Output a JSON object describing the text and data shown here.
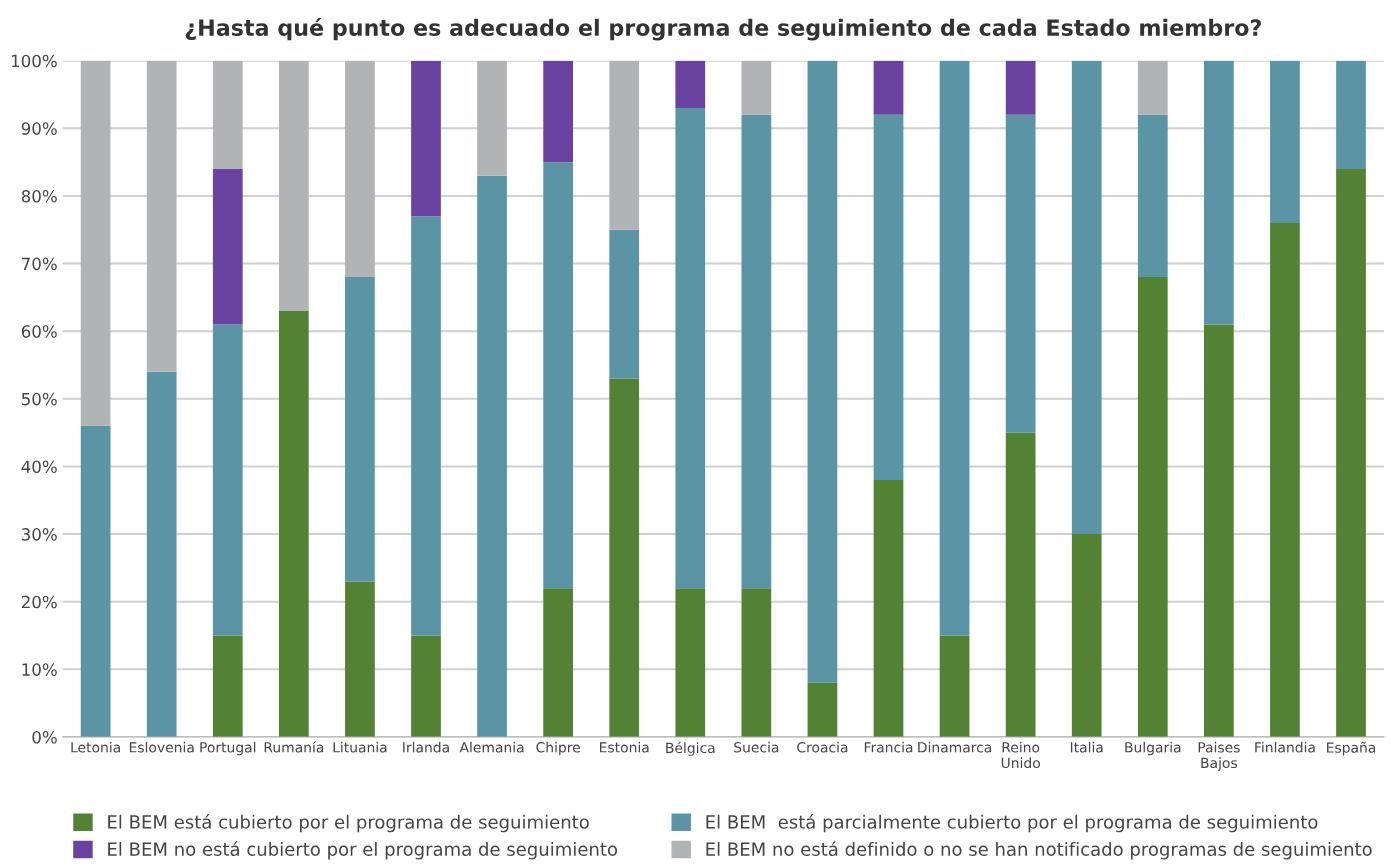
{
  "chart_data": {
    "type": "bar",
    "stacked": true,
    "title": "¿Hasta qué punto es adecuado el programa de seguimiento de cada Estado miembro?",
    "categories": [
      "Letonia",
      "Eslovenia",
      "Portugal",
      "Rumanía",
      "Lituania",
      "Irlanda",
      "Alemania",
      "Chipre",
      "Estonia",
      "Bélgica",
      "Suecia",
      "Croacia",
      "Francia",
      "Dinamarca",
      "Reino\nUnido",
      "Italia",
      "Bulgaria",
      "Paises\nBajos",
      "Finlandia",
      "España"
    ],
    "series": [
      {
        "name": "El BEM está cubierto por el programa de seguimiento",
        "color": "#548235",
        "values": [
          0,
          0,
          15,
          63,
          23,
          15,
          0,
          22,
          53,
          22,
          22,
          8,
          38,
          15,
          45,
          30,
          68,
          61,
          76,
          84
        ]
      },
      {
        "name": "El BEM  está parcialmente cubierto por el programa de seguimiento",
        "color": "#5b94a5",
        "values": [
          46,
          54,
          46,
          0,
          45,
          62,
          83,
          63,
          22,
          71,
          70,
          92,
          54,
          85,
          47,
          70,
          24,
          39,
          24,
          16
        ]
      },
      {
        "name": "El BEM no está cubierto por el programa de seguimiento",
        "color": "#6a43a0",
        "values": [
          0,
          0,
          23,
          0,
          0,
          23,
          0,
          15,
          0,
          7,
          0,
          0,
          8,
          0,
          8,
          0,
          0,
          0,
          0,
          0
        ]
      },
      {
        "name": "El BEM no está definido o no se han notificado programas de seguimiento",
        "color": "#b1b4b5",
        "values": [
          54,
          46,
          16,
          37,
          32,
          0,
          17,
          0,
          25,
          0,
          8,
          0,
          0,
          0,
          0,
          0,
          8,
          0,
          0,
          0
        ]
      }
    ],
    "ylim": [
      0,
      100
    ],
    "yticks": [
      {
        "value": 0,
        "label": "0%"
      },
      {
        "value": 10,
        "label": "10%"
      },
      {
        "value": 20,
        "label": "20%"
      },
      {
        "value": 30,
        "label": "30%"
      },
      {
        "value": 40,
        "label": "40%"
      },
      {
        "value": 50,
        "label": "50%"
      },
      {
        "value": 60,
        "label": "60%"
      },
      {
        "value": 70,
        "label": "70%"
      },
      {
        "value": 80,
        "label": "80%"
      },
      {
        "value": 90,
        "label": "90%"
      },
      {
        "value": 100,
        "label": "100%"
      }
    ],
    "grid": "y",
    "legend": "bottom"
  }
}
